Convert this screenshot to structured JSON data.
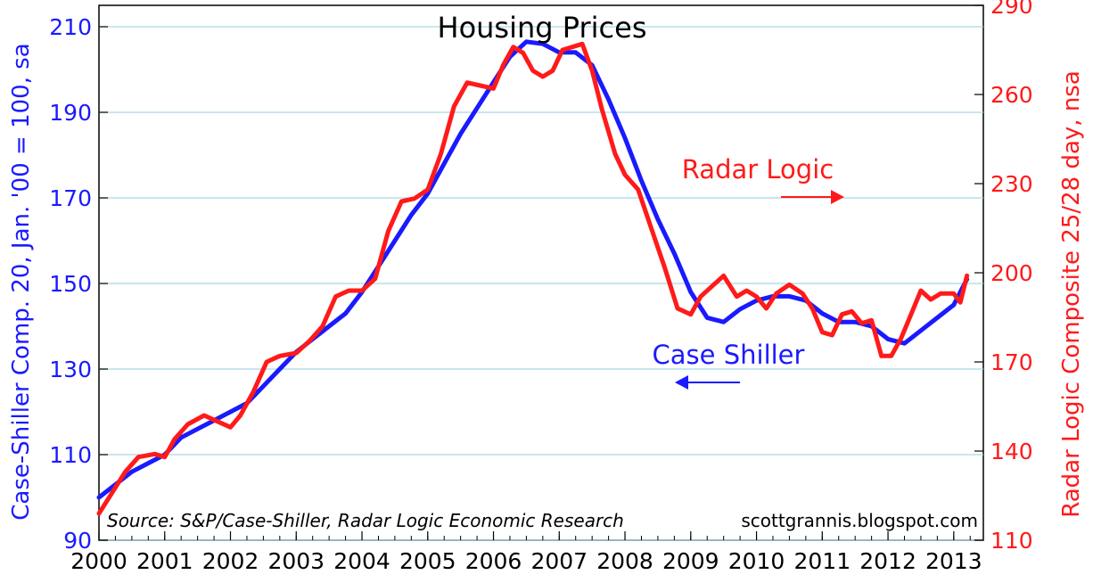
{
  "chart_data": {
    "type": "line",
    "title": "Housing Prices",
    "source": "Source: S&P/Case-Shiller, Radar Logic Economic Research",
    "credit": "scottgrannis.blogspot.com",
    "xlabel": "",
    "x_ticks": [
      "2000",
      "2001",
      "2002",
      "2003",
      "2004",
      "2005",
      "2006",
      "2007",
      "2008",
      "2009",
      "2010",
      "2011",
      "2012",
      "2013"
    ],
    "xlim": [
      2000,
      2013.45
    ],
    "left_axis": {
      "label": "Case-Shiller Comp. 20, Jan. '00 = 100, sa",
      "ylim": [
        90,
        215
      ],
      "ticks": [
        90,
        110,
        130,
        150,
        170,
        190,
        210
      ],
      "color": "#1a1aff"
    },
    "right_axis": {
      "label": "Radar Logic Composite 25/28 day, nsa",
      "ylim": [
        110,
        290
      ],
      "ticks": [
        110,
        140,
        170,
        200,
        230,
        260,
        290
      ],
      "color": "#ff1a1a"
    },
    "grid": true,
    "series": [
      {
        "name": "Case Shiller",
        "axis": "left",
        "color": "#1a1aff",
        "x": [
          2000.0,
          2000.25,
          2000.5,
          2000.75,
          2001.0,
          2001.25,
          2001.5,
          2001.75,
          2002.0,
          2002.25,
          2002.5,
          2002.75,
          2003.0,
          2003.25,
          2003.5,
          2003.75,
          2004.0,
          2004.25,
          2004.5,
          2004.75,
          2005.0,
          2005.25,
          2005.5,
          2005.75,
          2006.0,
          2006.25,
          2006.5,
          2006.75,
          2007.0,
          2007.25,
          2007.5,
          2007.75,
          2008.0,
          2008.25,
          2008.5,
          2008.75,
          2009.0,
          2009.25,
          2009.5,
          2009.75,
          2010.0,
          2010.25,
          2010.5,
          2010.75,
          2011.0,
          2011.25,
          2011.5,
          2011.75,
          2012.0,
          2012.25,
          2012.5,
          2012.75,
          2013.0,
          2013.2
        ],
        "values": [
          100,
          103,
          106,
          108,
          110,
          114,
          116,
          118,
          120,
          122,
          126,
          130,
          134,
          137,
          140,
          143,
          148,
          154,
          160,
          166,
          171,
          178,
          185,
          191,
          197,
          203,
          206.5,
          206,
          204,
          204,
          201,
          193,
          184,
          174,
          165,
          157,
          148,
          142,
          141,
          144,
          146,
          147,
          147,
          146,
          143,
          141,
          141,
          140,
          137,
          136,
          139,
          142,
          145,
          151
        ]
      },
      {
        "name": "Radar Logic",
        "axis": "right",
        "color": "#ff1a1a",
        "x": [
          2000.0,
          2000.2,
          2000.4,
          2000.6,
          2000.85,
          2001.0,
          2001.15,
          2001.35,
          2001.6,
          2001.8,
          2002.0,
          2002.15,
          2002.35,
          2002.55,
          2002.75,
          2003.0,
          2003.2,
          2003.4,
          2003.6,
          2003.8,
          2004.0,
          2004.2,
          2004.4,
          2004.6,
          2004.8,
          2005.0,
          2005.2,
          2005.4,
          2005.6,
          2005.8,
          2006.0,
          2006.15,
          2006.3,
          2006.45,
          2006.6,
          2006.75,
          2006.9,
          2007.05,
          2007.2,
          2007.35,
          2007.5,
          2007.65,
          2007.85,
          2008.0,
          2008.2,
          2008.4,
          2008.6,
          2008.8,
          2009.0,
          2009.15,
          2009.3,
          2009.5,
          2009.7,
          2009.85,
          2010.0,
          2010.15,
          2010.3,
          2010.5,
          2010.7,
          2010.85,
          2011.0,
          2011.15,
          2011.3,
          2011.45,
          2011.6,
          2011.75,
          2011.9,
          2012.05,
          2012.2,
          2012.35,
          2012.5,
          2012.65,
          2012.8,
          2013.0,
          2013.1,
          2013.2
        ],
        "values": [
          119,
          126,
          133,
          138,
          139,
          138,
          144,
          149,
          152,
          150,
          148,
          152,
          160,
          170,
          172,
          173,
          177,
          182,
          192,
          194,
          194,
          198,
          214,
          224,
          225,
          228,
          240,
          256,
          264,
          263,
          262,
          270,
          276,
          274,
          268,
          266,
          268,
          275,
          276,
          277,
          268,
          255,
          240,
          233,
          228,
          215,
          202,
          188,
          186,
          192,
          195,
          199,
          192,
          194,
          192,
          188,
          193,
          196,
          193,
          188,
          180,
          179,
          186,
          187,
          183,
          184,
          172,
          172,
          178,
          186,
          194,
          191,
          193,
          193,
          190,
          199
        ]
      }
    ],
    "annotations": {
      "radar_label": "Radar Logic",
      "case_label": "Case Shiller"
    }
  }
}
